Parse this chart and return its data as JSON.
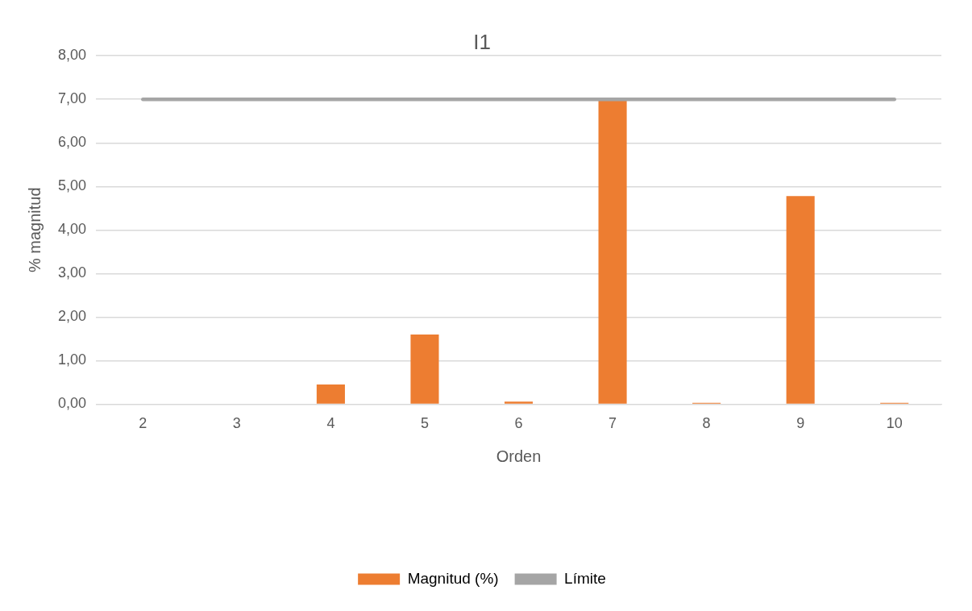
{
  "chart_data": {
    "type": "bar",
    "title": "I1",
    "xlabel": "Orden",
    "ylabel": "% magnitud",
    "categories": [
      "2",
      "3",
      "4",
      "5",
      "6",
      "7",
      "8",
      "9",
      "10"
    ],
    "series": [
      {
        "name": "Magnitud (%)",
        "color": "#ed7d31",
        "values": [
          0,
          0,
          0.45,
          1.6,
          0.06,
          6.97,
          0.03,
          4.78,
          0.03
        ]
      },
      {
        "name": "Límite",
        "type": "line",
        "color": "#a5a5a5",
        "values": [
          7,
          7,
          7,
          7,
          7,
          7,
          7,
          7,
          7
        ]
      }
    ],
    "ylim": [
      0,
      8
    ],
    "yticks": [
      {
        "value": 0,
        "label": "0,00"
      },
      {
        "value": 1,
        "label": "1,00"
      },
      {
        "value": 2,
        "label": "2,00"
      },
      {
        "value": 3,
        "label": "3,00"
      },
      {
        "value": 4,
        "label": "4,00"
      },
      {
        "value": 5,
        "label": "5,00"
      },
      {
        "value": 6,
        "label": "6,00"
      },
      {
        "value": 7,
        "label": "7,00"
      },
      {
        "value": 8,
        "label": "8,00"
      }
    ],
    "grid": "y",
    "legend": "bottom",
    "marker": "none",
    "line_style": "solid"
  }
}
